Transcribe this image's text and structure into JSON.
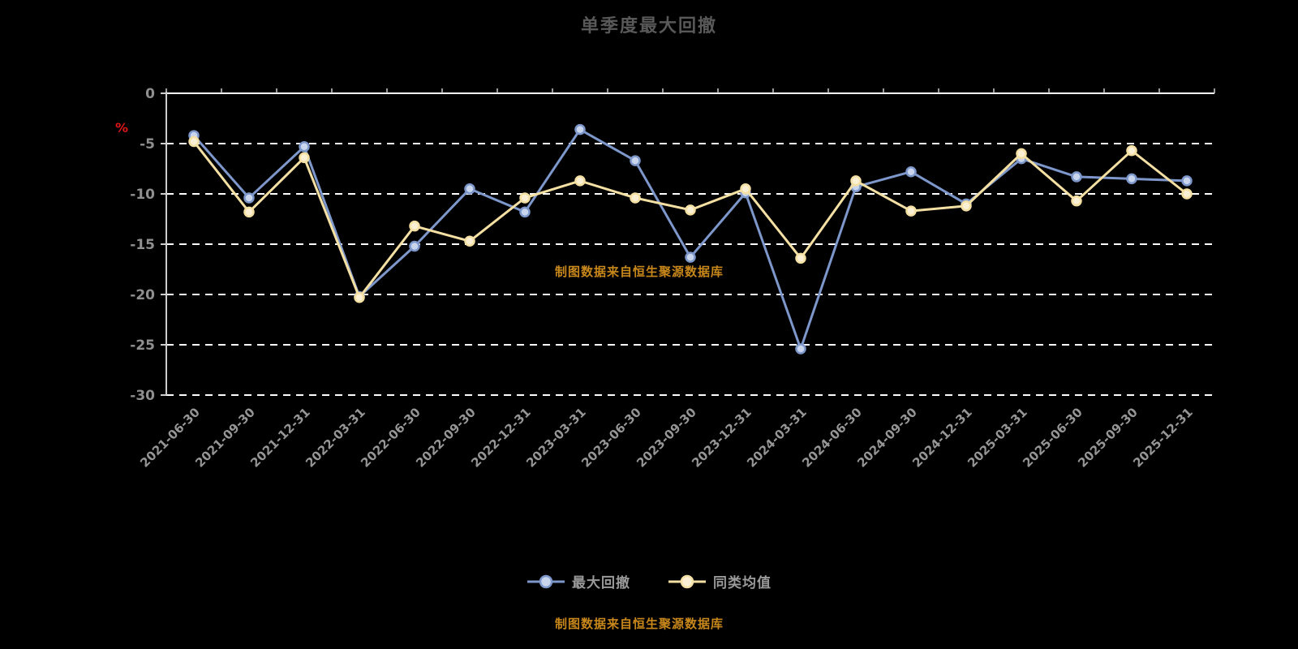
{
  "title": "单季度最大回撤",
  "watermark": "制图数据来自恒生聚源数据库",
  "footer_note": "制图数据来自恒生聚源数据库",
  "y_axis_unit": "%",
  "legend": [
    {
      "label": "最大回撤",
      "color": "#7d97cb"
    },
    {
      "label": "同类均值",
      "color": "#f5e0a3"
    }
  ],
  "colors": {
    "background": "#000000",
    "title": "#595959",
    "accent_orange": "#c8871b",
    "grid": "#ffffff",
    "axis": "#cccccc",
    "y_tick_label": "#8f8f8f",
    "x_tick_label": "#969696",
    "unit_red": "#e01515"
  },
  "chart_data": {
    "type": "line",
    "title": "单季度最大回撤",
    "ylabel": "%",
    "ylim": [
      -30,
      0
    ],
    "yticks": [
      0,
      -5,
      -10,
      -15,
      -20,
      -25,
      -30
    ],
    "grid": "horizontal-dashed",
    "legend_position": "bottom",
    "categories": [
      "2021-06-30",
      "2021-09-30",
      "2021-12-31",
      "2022-03-31",
      "2022-06-30",
      "2022-09-30",
      "2022-12-31",
      "2023-03-31",
      "2023-06-30",
      "2023-09-30",
      "2023-12-31",
      "2024-03-31",
      "2024-06-30",
      "2024-09-30",
      "2024-12-31",
      "2025-03-31",
      "2025-06-30",
      "2025-09-30",
      "2025-12-31"
    ],
    "series": [
      {
        "name": "最大回撤",
        "color": "#7d97cb",
        "marker_fill": "#c9d5ec",
        "values": [
          -4.2,
          -10.4,
          -5.3,
          -20.2,
          -15.2,
          -9.5,
          -11.8,
          -3.6,
          -6.7,
          -16.3,
          -9.9,
          -25.4,
          -9.3,
          -7.8,
          -11.0,
          -6.5,
          -8.3,
          -8.5,
          -8.7
        ]
      },
      {
        "name": "同类均值",
        "color": "#f5e0a3",
        "marker_fill": "#fbf0d3",
        "values": [
          -4.8,
          -11.8,
          -6.4,
          -20.3,
          -13.2,
          -14.7,
          -10.4,
          -8.7,
          -10.4,
          -11.6,
          -9.5,
          -16.4,
          -8.7,
          -11.7,
          -11.2,
          -6.0,
          -10.7,
          -5.7,
          -10.0
        ]
      }
    ]
  }
}
